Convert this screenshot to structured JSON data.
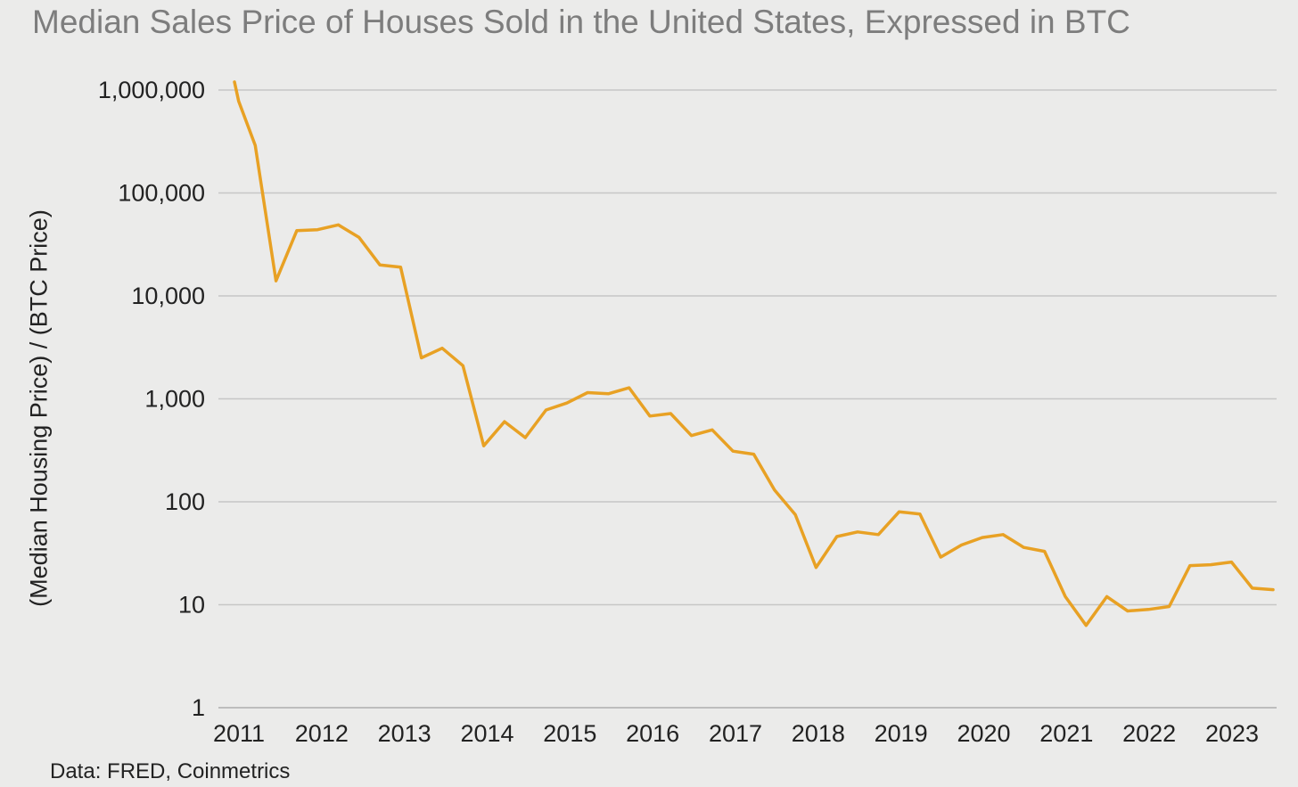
{
  "chart_data": {
    "type": "line",
    "title": "Median Sales Price of Houses Sold in the United States, Expressed in BTC",
    "xlabel": "",
    "ylabel": "(Median Housing Price) / (BTC Price)",
    "yscale": "log",
    "ylim": [
      1,
      1000000
    ],
    "xlim": [
      2011.0,
      2023.5
    ],
    "grid": true,
    "legend": "none",
    "line_color": "#e8a124",
    "y_ticks": [
      1,
      10,
      100,
      1000,
      10000,
      100000,
      1000000
    ],
    "y_tick_labels": [
      "1",
      "10",
      "100",
      "1,000",
      "10,000",
      "100,000",
      "1,000,000"
    ],
    "x_tick_labels": [
      "2011",
      "2012",
      "2013",
      "2014",
      "2015",
      "2016",
      "2017",
      "2018",
      "2019",
      "2020",
      "2021",
      "2022",
      "2023"
    ],
    "series": [
      {
        "x": [
          2011.0,
          2011.05,
          2011.25,
          2011.5,
          2011.75,
          2012.0,
          2012.25,
          2012.5,
          2012.75,
          2013.0,
          2013.25,
          2013.5,
          2013.75,
          2014.0,
          2014.25,
          2014.5,
          2014.75,
          2015.0,
          2015.25,
          2015.5,
          2015.75,
          2016.0,
          2016.25,
          2016.5,
          2016.75,
          2017.0,
          2017.25,
          2017.5,
          2017.75,
          2018.0,
          2018.25,
          2018.5,
          2018.75,
          2019.0,
          2019.25,
          2019.5,
          2019.75,
          2020.0,
          2020.25,
          2020.5,
          2020.75,
          2021.0,
          2021.25,
          2021.5,
          2021.75,
          2022.0,
          2022.25,
          2022.5,
          2022.75,
          2023.0,
          2023.25,
          2023.5
        ],
        "y": [
          1200000,
          780000,
          290000,
          14000,
          43000,
          44000,
          49000,
          37000,
          20000,
          19000,
          2500,
          3100,
          2100,
          350,
          600,
          420,
          780,
          910,
          1150,
          1120,
          1280,
          680,
          720,
          440,
          500,
          310,
          290,
          130,
          75,
          23,
          46,
          51,
          48,
          80,
          76,
          29,
          38,
          45,
          48,
          36,
          33,
          12,
          6.3,
          12,
          8.7,
          9,
          9.6,
          24,
          24.5,
          26,
          14.5,
          14
        ]
      }
    ]
  },
  "source_note": "Data: FRED, Coinmetrics"
}
